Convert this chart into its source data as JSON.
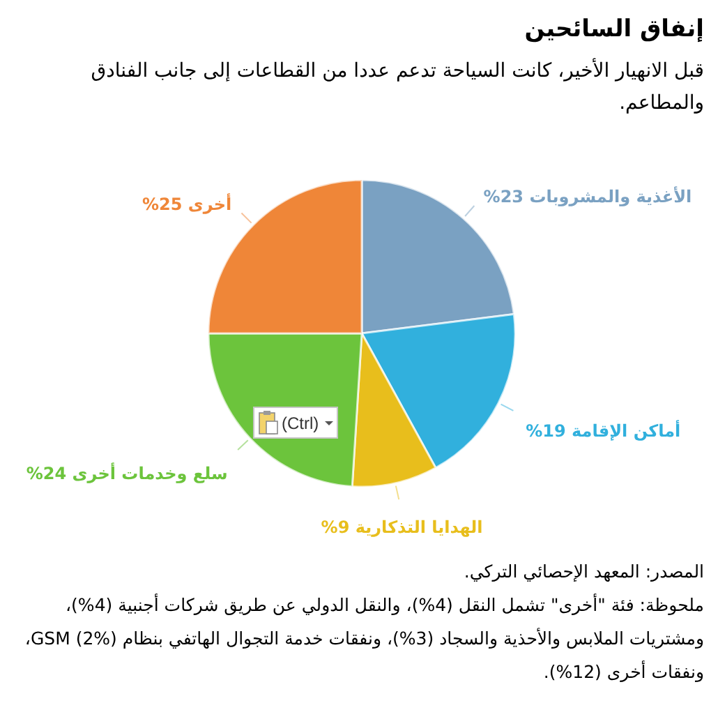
{
  "chart_data": {
    "type": "pie",
    "title": "إنفاق السائحين",
    "subtitle": "قبل الانهيار الأخير، كانت السياحة تدعم عددا من القطاعات إلى جانب الفنادق والمطاعم.",
    "categories": [
      "الأغذية والمشروبات",
      "أماكن الإقامة",
      "الهدايا التذكارية",
      "سلع وخدمات أخرى",
      "أخرى"
    ],
    "values": [
      23,
      19,
      9,
      24,
      25
    ],
    "value_labels": [
      "23%",
      "19%",
      "9%",
      "24%",
      "25%"
    ],
    "colors": [
      "#7aa1c2",
      "#31b0dd",
      "#e8be1c",
      "#6cc43c",
      "#ef8638"
    ],
    "annotations": [
      "المصدر: المعهد الإحصائي التركي.",
      "ملحوظة: فئة \"أخرى\" تشمل النقل (4%)، والنقل الدولي عن طريق شركات أجنبية (4%)، ومشتريات الملابس والأحذية والسجاد (3%)، ونفقات خدمة التجوال الهاتفي بنظام GSM (2%)، ونفقات أخرى (12%).",
      "(Ctrl)"
    ]
  }
}
